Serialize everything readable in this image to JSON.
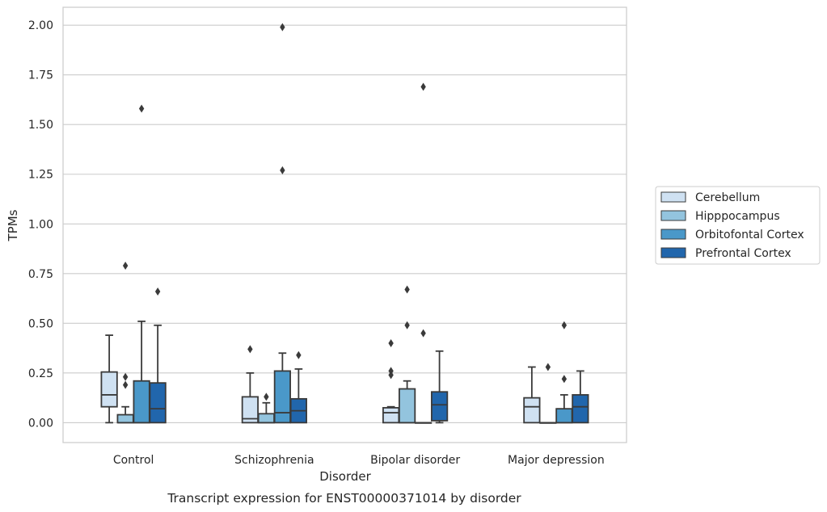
{
  "chart_data": {
    "type": "box",
    "title": "",
    "caption": "Transcript expression for ENST00000371014 by disorder",
    "xlabel": "Disorder",
    "ylabel": "TPMs",
    "ylim": [
      -0.1,
      2.09
    ],
    "yticks": [
      0.0,
      0.25,
      0.5,
      0.75,
      1.0,
      1.25,
      1.5,
      1.75,
      2.0
    ],
    "ytick_labels": [
      "0.00",
      "0.25",
      "0.50",
      "0.75",
      "1.00",
      "1.25",
      "1.50",
      "1.75",
      "2.00"
    ],
    "grid": "horizontal",
    "legend_position": "right",
    "categories": [
      "Control",
      "Schizophrenia",
      "Bipolar disorder",
      "Major depression"
    ],
    "series": [
      {
        "name": "Cerebellum",
        "color": "#cfe1f2",
        "boxes": [
          {
            "q1": 0.08,
            "median": 0.14,
            "q3": 0.255,
            "whislo": 0.0,
            "whishi": 0.44,
            "fliers": []
          },
          {
            "q1": 0.0,
            "median": 0.02,
            "q3": 0.13,
            "whislo": 0.0,
            "whishi": 0.25,
            "fliers": [
              0.37
            ]
          },
          {
            "q1": 0.0,
            "median": 0.05,
            "q3": 0.075,
            "whislo": 0.0,
            "whishi": 0.08,
            "fliers": [
              0.24,
              0.26,
              0.4
            ]
          },
          {
            "q1": 0.0,
            "median": 0.08,
            "q3": 0.125,
            "whislo": 0.0,
            "whishi": 0.28,
            "fliers": []
          }
        ]
      },
      {
        "name": "Hipppocampus",
        "color": "#93c4de",
        "boxes": [
          {
            "q1": 0.0,
            "median": 0.0,
            "q3": 0.04,
            "whislo": 0.0,
            "whishi": 0.08,
            "fliers": [
              0.19,
              0.23,
              0.79
            ]
          },
          {
            "q1": 0.0,
            "median": 0.0,
            "q3": 0.045,
            "whislo": 0.0,
            "whishi": 0.1,
            "fliers": [
              0.13
            ]
          },
          {
            "q1": 0.0,
            "median": 0.0,
            "q3": 0.17,
            "whislo": 0.0,
            "whishi": 0.21,
            "fliers": [
              0.49,
              0.67
            ]
          },
          {
            "q1": 0.0,
            "median": 0.0,
            "q3": 0.0,
            "whislo": 0.0,
            "whishi": 0.0,
            "fliers": [
              0.28
            ]
          }
        ]
      },
      {
        "name": "Orbitofontal Cortex",
        "color": "#4a98c9",
        "boxes": [
          {
            "q1": 0.0,
            "median": 0.0,
            "q3": 0.21,
            "whislo": 0.0,
            "whishi": 0.51,
            "fliers": [
              1.58
            ]
          },
          {
            "q1": 0.0,
            "median": 0.05,
            "q3": 0.26,
            "whislo": 0.0,
            "whishi": 0.35,
            "fliers": [
              1.27,
              1.99
            ]
          },
          {
            "q1": 0.0,
            "median": 0.0,
            "q3": 0.0,
            "whislo": 0.0,
            "whishi": 0.0,
            "fliers": [
              0.45,
              1.69
            ]
          },
          {
            "q1": 0.0,
            "median": 0.0,
            "q3": 0.07,
            "whislo": 0.0,
            "whishi": 0.14,
            "fliers": [
              0.22,
              0.49
            ]
          }
        ]
      },
      {
        "name": "Prefrontal Cortex",
        "color": "#2166ac",
        "boxes": [
          {
            "q1": 0.0,
            "median": 0.07,
            "q3": 0.2,
            "whislo": 0.0,
            "whishi": 0.49,
            "fliers": [
              0.66
            ]
          },
          {
            "q1": 0.0,
            "median": 0.06,
            "q3": 0.12,
            "whislo": 0.0,
            "whishi": 0.27,
            "fliers": [
              0.34
            ]
          },
          {
            "q1": 0.01,
            "median": 0.09,
            "q3": 0.155,
            "whislo": 0.0,
            "whishi": 0.36,
            "fliers": []
          },
          {
            "q1": 0.0,
            "median": 0.08,
            "q3": 0.14,
            "whislo": 0.0,
            "whishi": 0.26,
            "fliers": []
          }
        ]
      }
    ]
  }
}
